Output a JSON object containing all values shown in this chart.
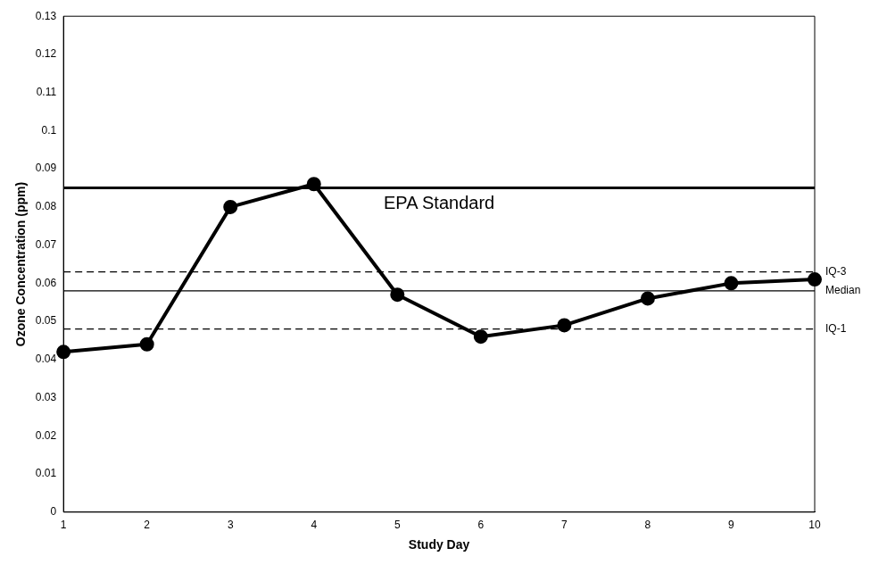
{
  "chart_data": {
    "type": "line",
    "xlabel": "Study Day",
    "ylabel": "Ozone Concentration (ppm)",
    "categories": [
      "1",
      "2",
      "3",
      "4",
      "5",
      "6",
      "7",
      "8",
      "9",
      "10"
    ],
    "series": [
      {
        "color": "#000000",
        "values": [
          0.042,
          0.044,
          0.08,
          0.086,
          0.057,
          0.046,
          0.049,
          0.056,
          0.06,
          0.061
        ]
      }
    ],
    "ylim": [
      0,
      0.13
    ],
    "yticks": [
      0,
      0.01,
      0.02,
      0.03,
      0.04,
      0.05,
      0.06,
      0.07,
      0.08,
      0.09,
      0.1,
      0.11,
      0.12,
      0.13
    ],
    "ref_lines": [
      {
        "axis": "y",
        "value": 0.085,
        "label": "EPA Standard",
        "color": "#000000",
        "line_style": "solid"
      },
      {
        "axis": "y",
        "value": 0.063,
        "label": "IQ-3",
        "color": "#000000",
        "line_style": "dashed"
      },
      {
        "axis": "y",
        "value": 0.058,
        "label": "Median",
        "color": "#000000",
        "line_style": "solid"
      },
      {
        "axis": "y",
        "value": 0.048,
        "label": "IQ-1",
        "color": "#000000",
        "line_style": "dashed"
      }
    ],
    "marker": "circle",
    "line_style": "solid",
    "grid": false,
    "legend": false
  }
}
